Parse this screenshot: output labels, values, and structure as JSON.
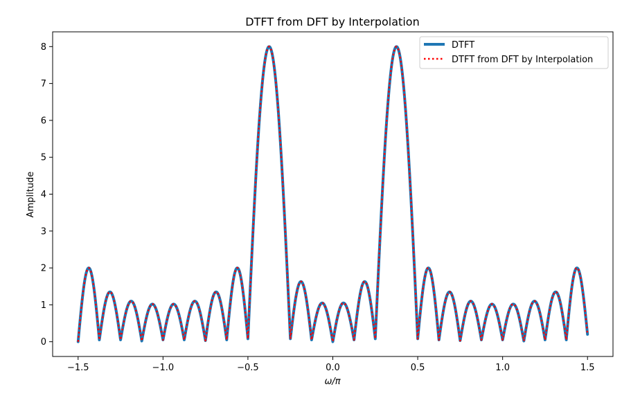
{
  "chart_data": {
    "type": "line",
    "title": "DTFT from DFT by Interpolation",
    "xlabel": "ω/π",
    "ylabel": "Amplitude",
    "xlim": [
      -1.65,
      1.65
    ],
    "ylim": [
      -0.4,
      8.4
    ],
    "xticks": [
      -1.5,
      -1.0,
      -0.5,
      0.0,
      0.5,
      1.0,
      1.5
    ],
    "xtick_labels": [
      "−1.5",
      "−1.0",
      "−0.5",
      "0.0",
      "0.5",
      "1.0",
      "1.5"
    ],
    "yticks": [
      0,
      1,
      2,
      3,
      4,
      5,
      6,
      7,
      8
    ],
    "ytick_labels": [
      "0",
      "1",
      "2",
      "3",
      "4",
      "5",
      "6",
      "7",
      "8"
    ],
    "grid": false,
    "legend": "top-right",
    "x_range": [
      -1.5,
      1.5
    ],
    "series": [
      {
        "name": "DTFT",
        "color": "#1f77b4",
        "style": "solid",
        "x": [
          -1.5,
          -1.4375,
          -1.375,
          -1.3125,
          -1.25,
          -1.1875,
          -1.125,
          -1.0625,
          -1.0,
          -0.9375,
          -0.875,
          -0.8125,
          -0.75,
          -0.6875,
          -0.625,
          -0.5625,
          -0.5,
          -0.375,
          -0.25,
          -0.1875,
          -0.125,
          -0.0625,
          0.0,
          0.0625,
          0.125,
          0.1875,
          0.25,
          0.375,
          0.5,
          0.5625,
          0.625,
          0.6875,
          0.75,
          0.8125,
          0.875,
          0.9375,
          1.0,
          1.0625,
          1.125,
          1.1875,
          1.25,
          1.3125,
          1.375,
          1.4375,
          1.5
        ],
        "y": [
          0.0,
          2.0,
          0.05,
          1.35,
          0.05,
          1.1,
          0.02,
          1.02,
          0.05,
          1.02,
          0.05,
          1.1,
          0.03,
          1.35,
          0.05,
          2.0,
          0.08,
          8.0,
          0.08,
          1.63,
          0.05,
          1.05,
          0.0,
          1.05,
          0.05,
          1.63,
          0.08,
          8.0,
          0.08,
          2.0,
          0.05,
          1.35,
          0.03,
          1.1,
          0.05,
          1.02,
          0.05,
          1.02,
          0.02,
          1.1,
          0.05,
          1.35,
          0.05,
          2.0,
          0.2
        ]
      },
      {
        "name": "DTFT from DFT by Interpolation",
        "color": "#ff0000",
        "style": "dotted",
        "x": [
          -1.5,
          -1.4375,
          -1.375,
          -1.3125,
          -1.25,
          -1.1875,
          -1.125,
          -1.0625,
          -1.0,
          -0.9375,
          -0.875,
          -0.8125,
          -0.75,
          -0.6875,
          -0.625,
          -0.5625,
          -0.5,
          -0.375,
          -0.25,
          -0.1875,
          -0.125,
          -0.0625,
          0.0,
          0.0625,
          0.125,
          0.1875,
          0.25,
          0.375,
          0.5,
          0.5625,
          0.625,
          0.6875,
          0.75,
          0.8125,
          0.875,
          0.9375,
          1.0,
          1.0625,
          1.125,
          1.1875,
          1.25,
          1.3125,
          1.375,
          1.4375,
          1.5
        ],
        "y": [
          0.0,
          2.0,
          0.05,
          1.35,
          0.05,
          1.1,
          0.02,
          1.02,
          0.05,
          1.02,
          0.05,
          1.1,
          0.03,
          1.35,
          0.05,
          2.0,
          0.08,
          8.0,
          0.08,
          1.63,
          0.05,
          1.05,
          0.0,
          1.05,
          0.05,
          1.63,
          0.08,
          8.0,
          0.08,
          2.0,
          0.05,
          1.35,
          0.03,
          1.1,
          0.05,
          1.02,
          0.05,
          1.02,
          0.02,
          1.1,
          0.05,
          1.35,
          0.05,
          2.0,
          0.2
        ]
      }
    ]
  }
}
